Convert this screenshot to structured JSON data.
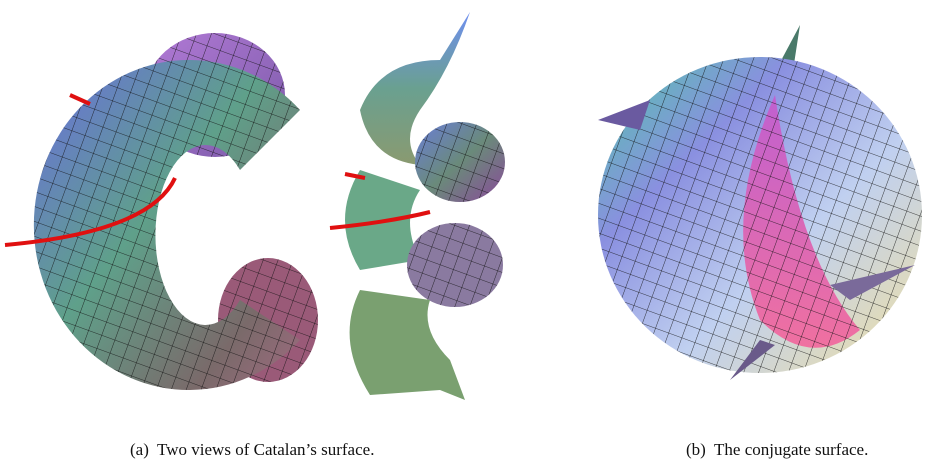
{
  "figure": {
    "subfigures": [
      {
        "caption": "(a)  Two views of Catalan’s surface."
      },
      {
        "caption": "(b)  The conjugate surface."
      }
    ]
  }
}
